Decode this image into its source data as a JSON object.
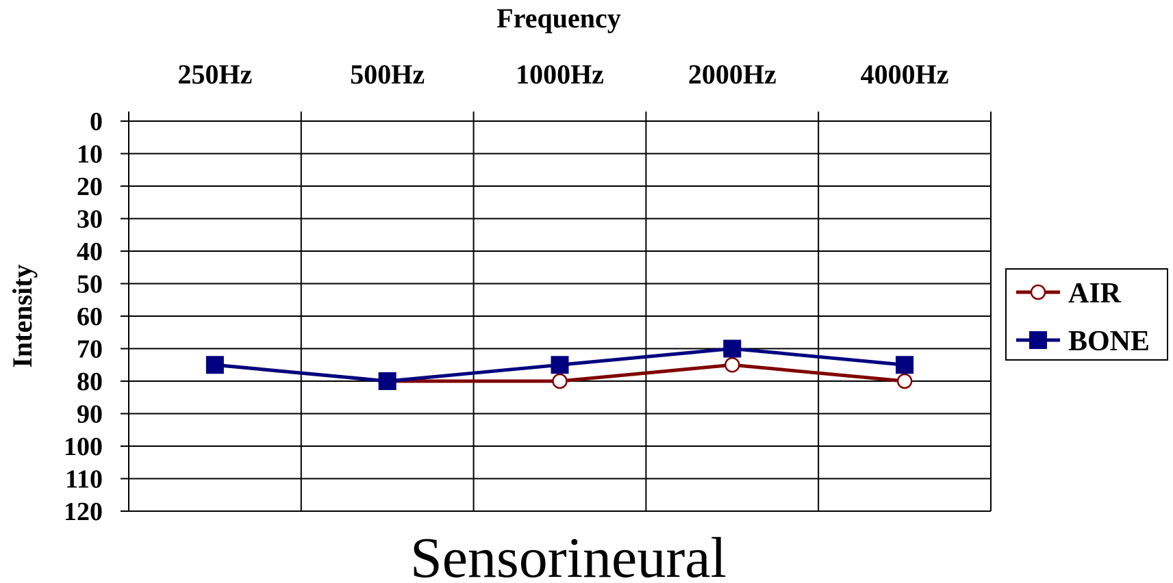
{
  "chart_data": {
    "type": "line",
    "xlabel": "Frequency",
    "ylabel": "Intensity",
    "caption": "Sensorineural",
    "categories": [
      "250Hz",
      "500Hz",
      "1000Hz",
      "2000Hz",
      "4000Hz"
    ],
    "y_ticks": [
      "0",
      "10",
      "20",
      "30",
      "40",
      "50",
      "60",
      "70",
      "80",
      "90",
      "100",
      "110",
      "120"
    ],
    "ylim": [
      0,
      120
    ],
    "y_inverted": true,
    "x_axis_position": "top",
    "grid": true,
    "legend": "right",
    "series": [
      {
        "name": "AIR",
        "values": [
          75,
          80,
          80,
          75,
          80
        ],
        "color": "#800000",
        "marker": "open-circle"
      },
      {
        "name": "BONE",
        "values": [
          75,
          80,
          75,
          70,
          75
        ],
        "color": "#000080",
        "marker": "filled-square"
      }
    ]
  }
}
